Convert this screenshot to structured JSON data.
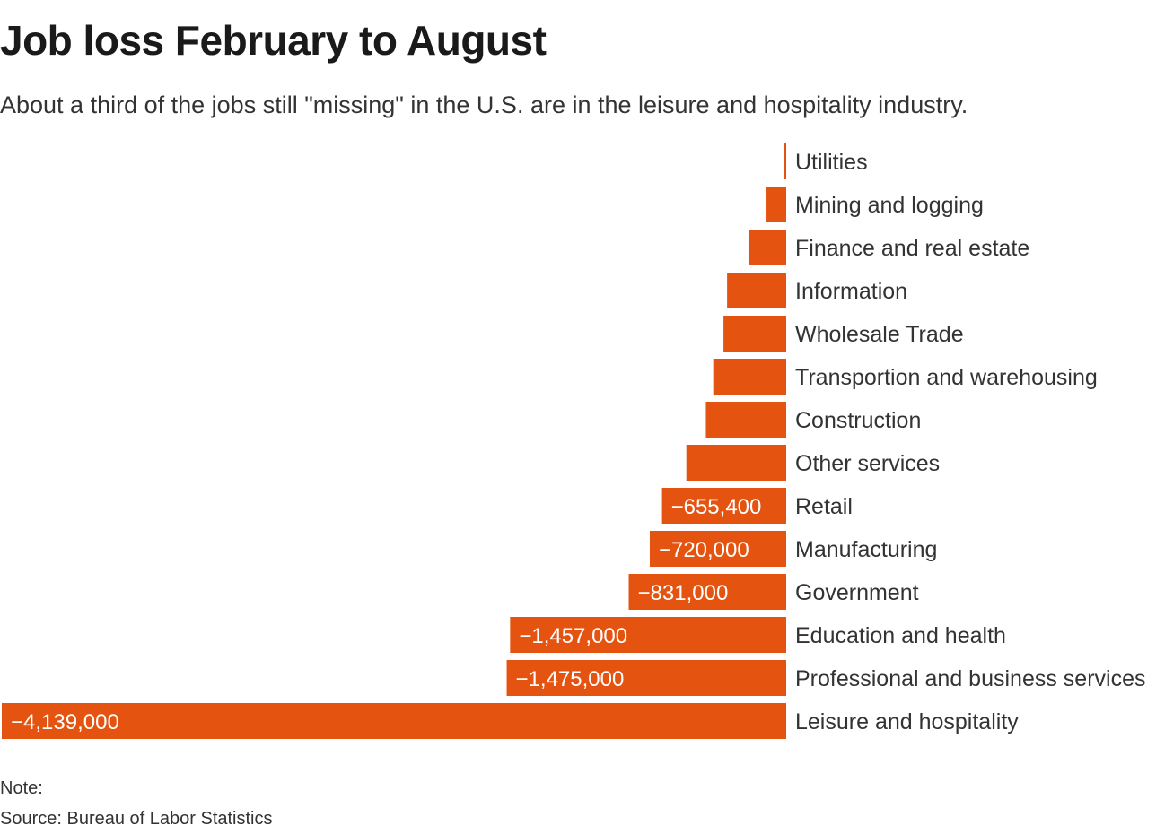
{
  "header": {
    "title": "Job loss February to August",
    "subtitle": "About a third of the jobs still \"missing\" in the U.S. are in the leisure and hospitality industry."
  },
  "footer": {
    "note": "Note:",
    "source": "Source: Bureau of Labor Statistics"
  },
  "colors": {
    "bar": "#E55310",
    "bar_label": "#ffffff",
    "category_label": "#333333"
  },
  "chart_data": {
    "type": "bar",
    "orientation": "horizontal",
    "title": "Job loss February to August",
    "xlim": [
      -4139000,
      0
    ],
    "categories": [
      "Utilities",
      "Mining and logging",
      "Finance and real estate",
      "Information",
      "Wholesale Trade",
      "Transportion and warehousing",
      "Construction",
      "Other services",
      "Retail",
      "Manufacturing",
      "Government",
      "Education and health",
      "Professional and business services",
      "Leisure and hospitality"
    ],
    "values": [
      -10000,
      -104000,
      -199000,
      -312000,
      -331000,
      -385000,
      -424000,
      -527000,
      -655400,
      -720000,
      -831000,
      -1457000,
      -1475000,
      -4139000
    ],
    "value_labels": [
      "",
      "",
      "",
      "",
      "",
      "",
      "",
      "",
      "−655,400",
      "−720,000",
      "−831,000",
      "−1,457,000",
      "−1,475,000",
      "−4,139,000"
    ]
  }
}
